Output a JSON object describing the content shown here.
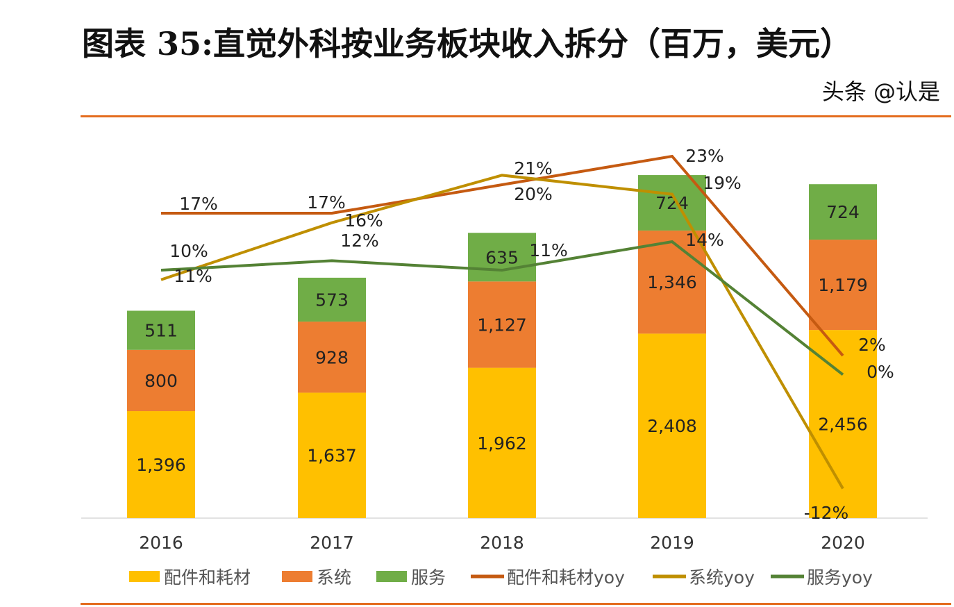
{
  "title": "图表 35:直觉外科按业务板块收入拆分（百万，美元）",
  "watermark": "头条 @认是",
  "chart_data": {
    "type": "bar",
    "stacked": true,
    "title": "图表 35:直觉外科按业务板块收入拆分（百万，美元）",
    "categories": [
      "2016",
      "2017",
      "2018",
      "2019",
      "2020"
    ],
    "series": [
      {
        "name": "配件和耗材",
        "kind": "bar",
        "color": "#ffc000",
        "values": [
          1396,
          1637,
          1962,
          2408,
          2456
        ],
        "labels": [
          "1,396",
          "1,637",
          "1,962",
          "2,408",
          "2,456"
        ]
      },
      {
        "name": "系统",
        "kind": "bar",
        "color": "#ed7d31",
        "values": [
          800,
          928,
          1127,
          1346,
          1179
        ],
        "labels": [
          "800",
          "928",
          "1,127",
          "1,346",
          "1,179"
        ]
      },
      {
        "name": "服务",
        "kind": "bar",
        "color": "#70ad47",
        "values": [
          511,
          573,
          635,
          724,
          724
        ],
        "labels": [
          "511",
          "573",
          "635",
          "724",
          "724"
        ]
      },
      {
        "name": "配件和耗材yoy",
        "kind": "line",
        "color": "#c55a11",
        "values": [
          17,
          17,
          20,
          23,
          2
        ],
        "labels": [
          "17%",
          "17%",
          "20%",
          "23%",
          "2%"
        ]
      },
      {
        "name": "系统yoy",
        "kind": "line",
        "color": "#bf8f00",
        "values": [
          10,
          16,
          21,
          19,
          -12
        ],
        "labels": [
          "10%",
          "16%",
          "21%",
          "19%",
          "-12%"
        ]
      },
      {
        "name": "服务yoy",
        "kind": "line",
        "color": "#548235",
        "values": [
          11,
          12,
          11,
          14,
          0
        ],
        "labels": [
          "11%",
          "12%",
          "11%",
          "14%",
          "0%"
        ]
      }
    ],
    "ylim": [
      0,
      5000
    ],
    "y2lim_percent": [
      -15,
      25
    ],
    "grid": false,
    "legend": "bottom"
  }
}
